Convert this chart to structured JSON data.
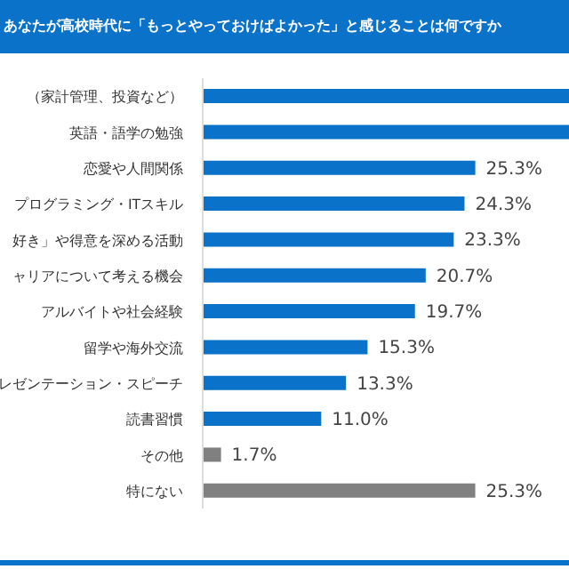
{
  "chart_data": {
    "type": "bar",
    "orientation": "horizontal",
    "title": "あなたが高校時代に「もっとやっておけばよかった」と感じることは何ですか",
    "categories": [
      "（家計管理、投資など）",
      "英語・語学の勉強",
      "恋愛や人間関係",
      "プログラミング・ITスキル",
      "好き」や得意を深める活動",
      "ャリアについて考える機会",
      "アルバイトや社会経験",
      "留学や海外交流",
      "レゼンテーション・スピーチ",
      "読書習慣",
      "その他",
      "特にない"
    ],
    "values": [
      34,
      34,
      25.3,
      24.3,
      23.3,
      20.7,
      19.7,
      15.3,
      13.3,
      11.0,
      1.7,
      25.3
    ],
    "value_labels": [
      null,
      null,
      "25.3%",
      "24.3%",
      "23.3%",
      "20.7%",
      "19.7%",
      "15.3%",
      "13.3%",
      "11.0%",
      "1.7%",
      "25.3%"
    ],
    "colors": [
      "#0a72c8",
      "#0a72c8",
      "#0a72c8",
      "#0a72c8",
      "#0a72c8",
      "#0a72c8",
      "#0a72c8",
      "#0a72c8",
      "#0a72c8",
      "#0a72c8",
      "#808080",
      "#808080"
    ],
    "xlim": [
      0,
      34
    ]
  }
}
